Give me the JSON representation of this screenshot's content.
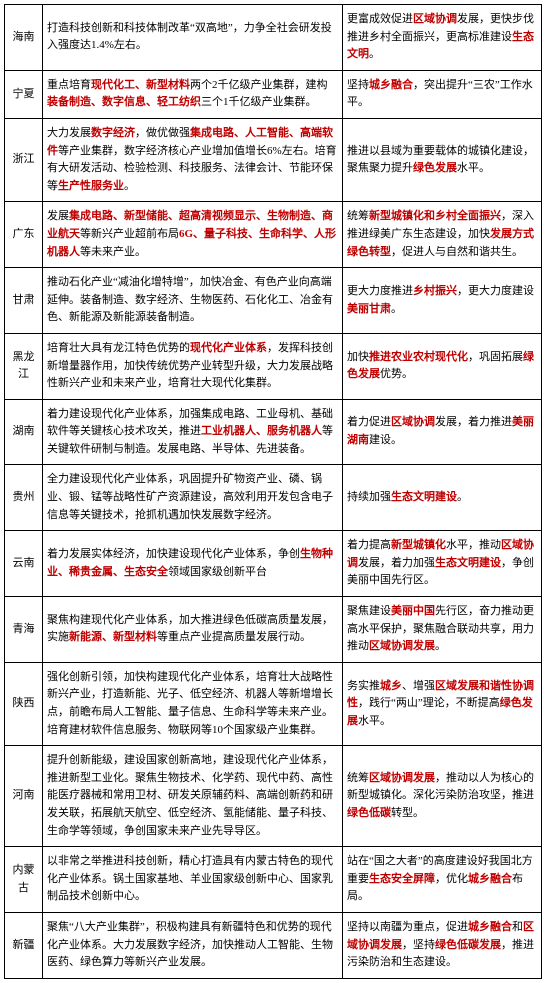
{
  "rows": [
    {
      "province": "海南",
      "c2_parts": [
        {
          "t": "打造科技创新和科技体制改革“双高地”，力争全社会研发投入强度达1.4%左右。",
          "hl": false
        }
      ],
      "c3_parts": [
        {
          "t": "更富成效促进",
          "hl": false
        },
        {
          "t": "区域协调",
          "hl": true
        },
        {
          "t": "发展，更快步伐推进乡村全面振兴，更高标准建设",
          "hl": false
        },
        {
          "t": "生态文明",
          "hl": true
        },
        {
          "t": "。",
          "hl": false
        }
      ]
    },
    {
      "province": "宁夏",
      "c2_parts": [
        {
          "t": "重点培育",
          "hl": false
        },
        {
          "t": "现代化工、新型材料",
          "hl": true
        },
        {
          "t": "两个2千亿级产业集群，建构",
          "hl": false
        },
        {
          "t": "装备制造、数字信息、轻工纺织",
          "hl": true
        },
        {
          "t": "三个1千亿级产业集群。",
          "hl": false
        }
      ],
      "c3_parts": [
        {
          "t": "坚持",
          "hl": false
        },
        {
          "t": "城乡融合",
          "hl": true
        },
        {
          "t": "，突出提升“三农”工作水平。",
          "hl": false
        }
      ]
    },
    {
      "province": "浙江",
      "c2_parts": [
        {
          "t": "大力发展",
          "hl": false
        },
        {
          "t": "数字经济",
          "hl": true
        },
        {
          "t": "，做优做强",
          "hl": false
        },
        {
          "t": "集成电路、人工智能、高端软件",
          "hl": true
        },
        {
          "t": "等产业集群，数字经济核心产业增加值增长6%左右。培育有大研发活动、检验检测、科技服务、法律会计、节能环保等",
          "hl": false
        },
        {
          "t": "生产性服务业",
          "hl": true
        },
        {
          "t": "。",
          "hl": false
        }
      ],
      "c3_parts": [
        {
          "t": "推进以县域为重要载体的城镇化建设，聚焦聚力提升",
          "hl": false
        },
        {
          "t": "绿色发展",
          "hl": true
        },
        {
          "t": "水平。",
          "hl": false
        }
      ]
    },
    {
      "province": "广东",
      "c2_parts": [
        {
          "t": "发展",
          "hl": false
        },
        {
          "t": "集成电路、新型储能、超高清视频显示、生物制造、商业航天",
          "hl": true
        },
        {
          "t": "等新兴产业超前布局",
          "hl": false
        },
        {
          "t": "6G、量子科技、生命科学、人形机器人",
          "hl": true
        },
        {
          "t": "等未来产业。",
          "hl": false
        }
      ],
      "c3_parts": [
        {
          "t": "统筹",
          "hl": false
        },
        {
          "t": "新型城镇化和乡村全面振兴",
          "hl": true
        },
        {
          "t": "，深入推进绿美广东生态建设，加快",
          "hl": false
        },
        {
          "t": "发展方式绿色转型",
          "hl": true
        },
        {
          "t": "，促进人与自然和谐共生。",
          "hl": false
        }
      ]
    },
    {
      "province": "甘肃",
      "c2_parts": [
        {
          "t": "推动石化产业“减油化增特增”，加快冶金、有色产业向高端延伸。装备制造、数字经济、生物医药、石化化工、冶金有色、新能源及新能源装备制造。",
          "hl": false
        }
      ],
      "c3_parts": [
        {
          "t": "更大力度推进",
          "hl": false
        },
        {
          "t": "乡村振兴",
          "hl": true
        },
        {
          "t": "，更大力度建设",
          "hl": false
        },
        {
          "t": "美丽甘肃",
          "hl": true
        },
        {
          "t": "。",
          "hl": false
        }
      ]
    },
    {
      "province": "黑龙江",
      "c2_parts": [
        {
          "t": "培育壮大具有龙江特色优势的",
          "hl": false
        },
        {
          "t": "现代化产业体系",
          "hl": true
        },
        {
          "t": "，发挥科技创新增量器作用，加快传统优势产业转型升级，大力发展战略性新兴产业和未来产业，培育壮大现代化集群。",
          "hl": false
        }
      ],
      "c3_parts": [
        {
          "t": "加快",
          "hl": false
        },
        {
          "t": "推进农业农村现代化",
          "hl": true
        },
        {
          "t": "，巩固拓展",
          "hl": false
        },
        {
          "t": "绿色发展",
          "hl": true
        },
        {
          "t": "优势。",
          "hl": false
        }
      ]
    },
    {
      "province": "湖南",
      "c2_parts": [
        {
          "t": "着力建设现代化产业体系，加强集成电路、工业母机、基础软件等关键核心技术攻关，推进",
          "hl": false
        },
        {
          "t": "工业机器人、服务机器人",
          "hl": true
        },
        {
          "t": "等关键软件研制与制造。发展电路、半导体、先进装备。",
          "hl": false
        }
      ],
      "c3_parts": [
        {
          "t": "着力促进",
          "hl": false
        },
        {
          "t": "区域协调",
          "hl": true
        },
        {
          "t": "发展，着力推进",
          "hl": false
        },
        {
          "t": "美丽湖南",
          "hl": true
        },
        {
          "t": "建设。",
          "hl": false
        }
      ]
    },
    {
      "province": "贵州",
      "c2_parts": [
        {
          "t": "全力建设现代化产业体系，巩固提升矿物资产业、磷、锅业、锻、锰等战略性矿产资源建设，高效利用开发包含电子信息等关键技术，抢抓机遇加快发展数字经济。",
          "hl": false
        }
      ],
      "c3_parts": [
        {
          "t": "持续加强",
          "hl": false
        },
        {
          "t": "生态文明建设",
          "hl": true
        },
        {
          "t": "。",
          "hl": false
        }
      ]
    },
    {
      "province": "云南",
      "c2_parts": [
        {
          "t": "着力发展实体经济，加快建设现代化产业体系，争创",
          "hl": false
        },
        {
          "t": "生物种业、稀贵金属、生态安全",
          "hl": true
        },
        {
          "t": "领域国家级创新平台",
          "hl": false
        }
      ],
      "c3_parts": [
        {
          "t": "着力提高",
          "hl": false
        },
        {
          "t": "新型城镇化",
          "hl": true
        },
        {
          "t": "水平，推动",
          "hl": false
        },
        {
          "t": "区域协调",
          "hl": true
        },
        {
          "t": "发展，着力加强",
          "hl": false
        },
        {
          "t": "生态文明建设",
          "hl": true
        },
        {
          "t": "，争创美丽中国先行区。",
          "hl": false
        }
      ]
    },
    {
      "province": "青海",
      "c2_parts": [
        {
          "t": "聚焦构建现代化产业体系，加大推进绿色低碳高质量发展，实施",
          "hl": false
        },
        {
          "t": "新能源、新型材料",
          "hl": true
        },
        {
          "t": "等重点产业提高质量发展行动。",
          "hl": false
        }
      ],
      "c3_parts": [
        {
          "t": "聚焦建设",
          "hl": false
        },
        {
          "t": "美丽中国",
          "hl": true
        },
        {
          "t": "先行区，奋力推动更高水平保护，聚焦融合联动共享，用力推动",
          "hl": false
        },
        {
          "t": "区域协调发展",
          "hl": true
        },
        {
          "t": "。",
          "hl": false
        }
      ]
    },
    {
      "province": "陕西",
      "c2_parts": [
        {
          "t": "强化创新引领，加快构建现代化产业体系，培育壮大战略性新兴产业，打造新能、光子、低空经济、机器人等新增增长点，前瞻布局人工智能、量子信息、生命科学等未来产业。培育建材软件信息服务、物联网等10个国家级产业集群。",
          "hl": false
        }
      ],
      "c3_parts": [
        {
          "t": "务实推",
          "hl": false
        },
        {
          "t": "城乡",
          "hl": true
        },
        {
          "t": "、增强",
          "hl": false
        },
        {
          "t": "区域发展和谐性协调性",
          "hl": true
        },
        {
          "t": "，践行“两山”理论，不断提高",
          "hl": false
        },
        {
          "t": "绿色发展",
          "hl": true
        },
        {
          "t": "水平。",
          "hl": false
        }
      ]
    },
    {
      "province": "河南",
      "c2_parts": [
        {
          "t": "提升创新能级，建设国家创新高地，建设现代化产业体系，推进新型工业化。聚焦生物技术、化学药、现代中药、高性能医疗器械和常用卫材、研发关原辅药料、高端创新药和研发关联，拓展航天航空、低空经济、氢能储能、量子科技、生命学等领域，争创国家未来产业先导导区。",
          "hl": false
        }
      ],
      "c3_parts": [
        {
          "t": "统筹",
          "hl": false
        },
        {
          "t": "区域协调发展",
          "hl": true
        },
        {
          "t": "，推动以人为核心的新型城镇化。深化污染防治攻坚，推进",
          "hl": false
        },
        {
          "t": "绿色低碳",
          "hl": true
        },
        {
          "t": "转型。",
          "hl": false
        }
      ]
    },
    {
      "province": "内蒙古",
      "c2_parts": [
        {
          "t": "以非常之举推进科技创新，精心打造具有内蒙古特色的现代化产业体系。锅土国家基地、羊业国家级创新中心、国家乳制品技术创新中心。",
          "hl": false
        }
      ],
      "c3_parts": [
        {
          "t": "站在“国之大者”的高度建设好我国北方重要",
          "hl": false
        },
        {
          "t": "生态安全屏障",
          "hl": true
        },
        {
          "t": "，优化",
          "hl": false
        },
        {
          "t": "城乡融合",
          "hl": true
        },
        {
          "t": "布局。",
          "hl": false
        }
      ]
    },
    {
      "province": "新疆",
      "c2_parts": [
        {
          "t": "聚焦“八大产业集群”，积极构建具有新疆特色和优势的现代化产业体系。大力发展数字经济，加快推动人工智能、生物医药、绿色算力等新兴产业发展。",
          "hl": false
        }
      ],
      "c3_parts": [
        {
          "t": "坚持以南疆为重点，促进",
          "hl": false
        },
        {
          "t": "城乡融合",
          "hl": true
        },
        {
          "t": "和",
          "hl": false
        },
        {
          "t": "区域协调发展",
          "hl": true
        },
        {
          "t": "，坚持",
          "hl": false
        },
        {
          "t": "绿色低碳发展",
          "hl": true
        },
        {
          "t": "，推进污染防治和生态建设。",
          "hl": false
        }
      ]
    }
  ]
}
